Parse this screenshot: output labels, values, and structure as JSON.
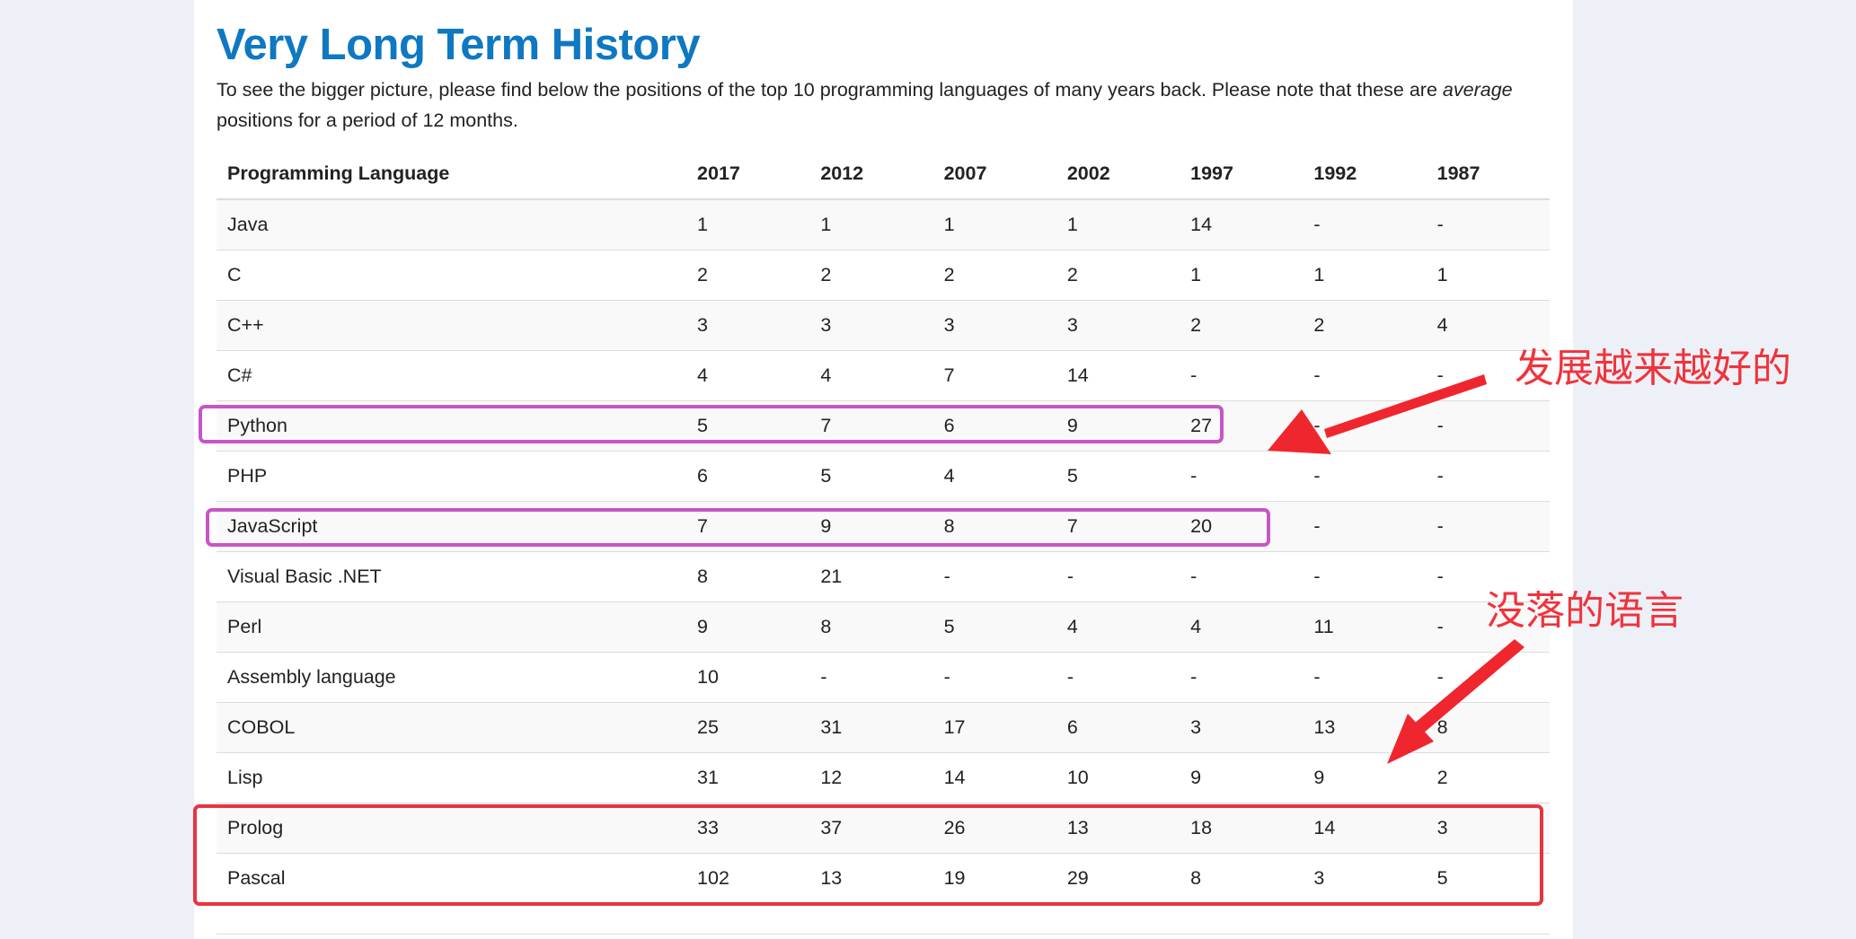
{
  "page": {
    "title": "Very Long Term History",
    "intro_part1": "To see the bigger picture, please find below the positions of the top 10 programming languages of many years back. Please note that these are ",
    "intro_em": "average",
    "intro_part2": " positions for a period of 12 months."
  },
  "table": {
    "headers": [
      "Programming Language",
      "2017",
      "2012",
      "2007",
      "2002",
      "1997",
      "1992",
      "1987"
    ],
    "rows": [
      [
        "Java",
        "1",
        "1",
        "1",
        "1",
        "14",
        "-",
        "-"
      ],
      [
        "C",
        "2",
        "2",
        "2",
        "2",
        "1",
        "1",
        "1"
      ],
      [
        "C++",
        "3",
        "3",
        "3",
        "3",
        "2",
        "2",
        "4"
      ],
      [
        "C#",
        "4",
        "4",
        "7",
        "14",
        "-",
        "-",
        "-"
      ],
      [
        "Python",
        "5",
        "7",
        "6",
        "9",
        "27",
        "-",
        "-"
      ],
      [
        "PHP",
        "6",
        "5",
        "4",
        "5",
        "-",
        "-",
        "-"
      ],
      [
        "JavaScript",
        "7",
        "9",
        "8",
        "7",
        "20",
        "-",
        "-"
      ],
      [
        "Visual Basic .NET",
        "8",
        "21",
        "-",
        "-",
        "-",
        "-",
        "-"
      ],
      [
        "Perl",
        "9",
        "8",
        "5",
        "4",
        "4",
        "11",
        "-"
      ],
      [
        "Assembly language",
        "10",
        "-",
        "-",
        "-",
        "-",
        "-",
        "-"
      ],
      [
        "COBOL",
        "25",
        "31",
        "17",
        "6",
        "3",
        "13",
        "8"
      ],
      [
        "Lisp",
        "31",
        "12",
        "14",
        "10",
        "9",
        "9",
        "2"
      ],
      [
        "Prolog",
        "33",
        "37",
        "26",
        "13",
        "18",
        "14",
        "3"
      ],
      [
        "Pascal",
        "102",
        "13",
        "19",
        "29",
        "8",
        "3",
        "5"
      ]
    ]
  },
  "annotations": {
    "rising_label": "发展越来越好的",
    "declining_label": "没落的语言",
    "colors": {
      "purple_box": "#c655c9",
      "red_box": "#e8343f",
      "arrow_red": "#f0262f"
    }
  }
}
